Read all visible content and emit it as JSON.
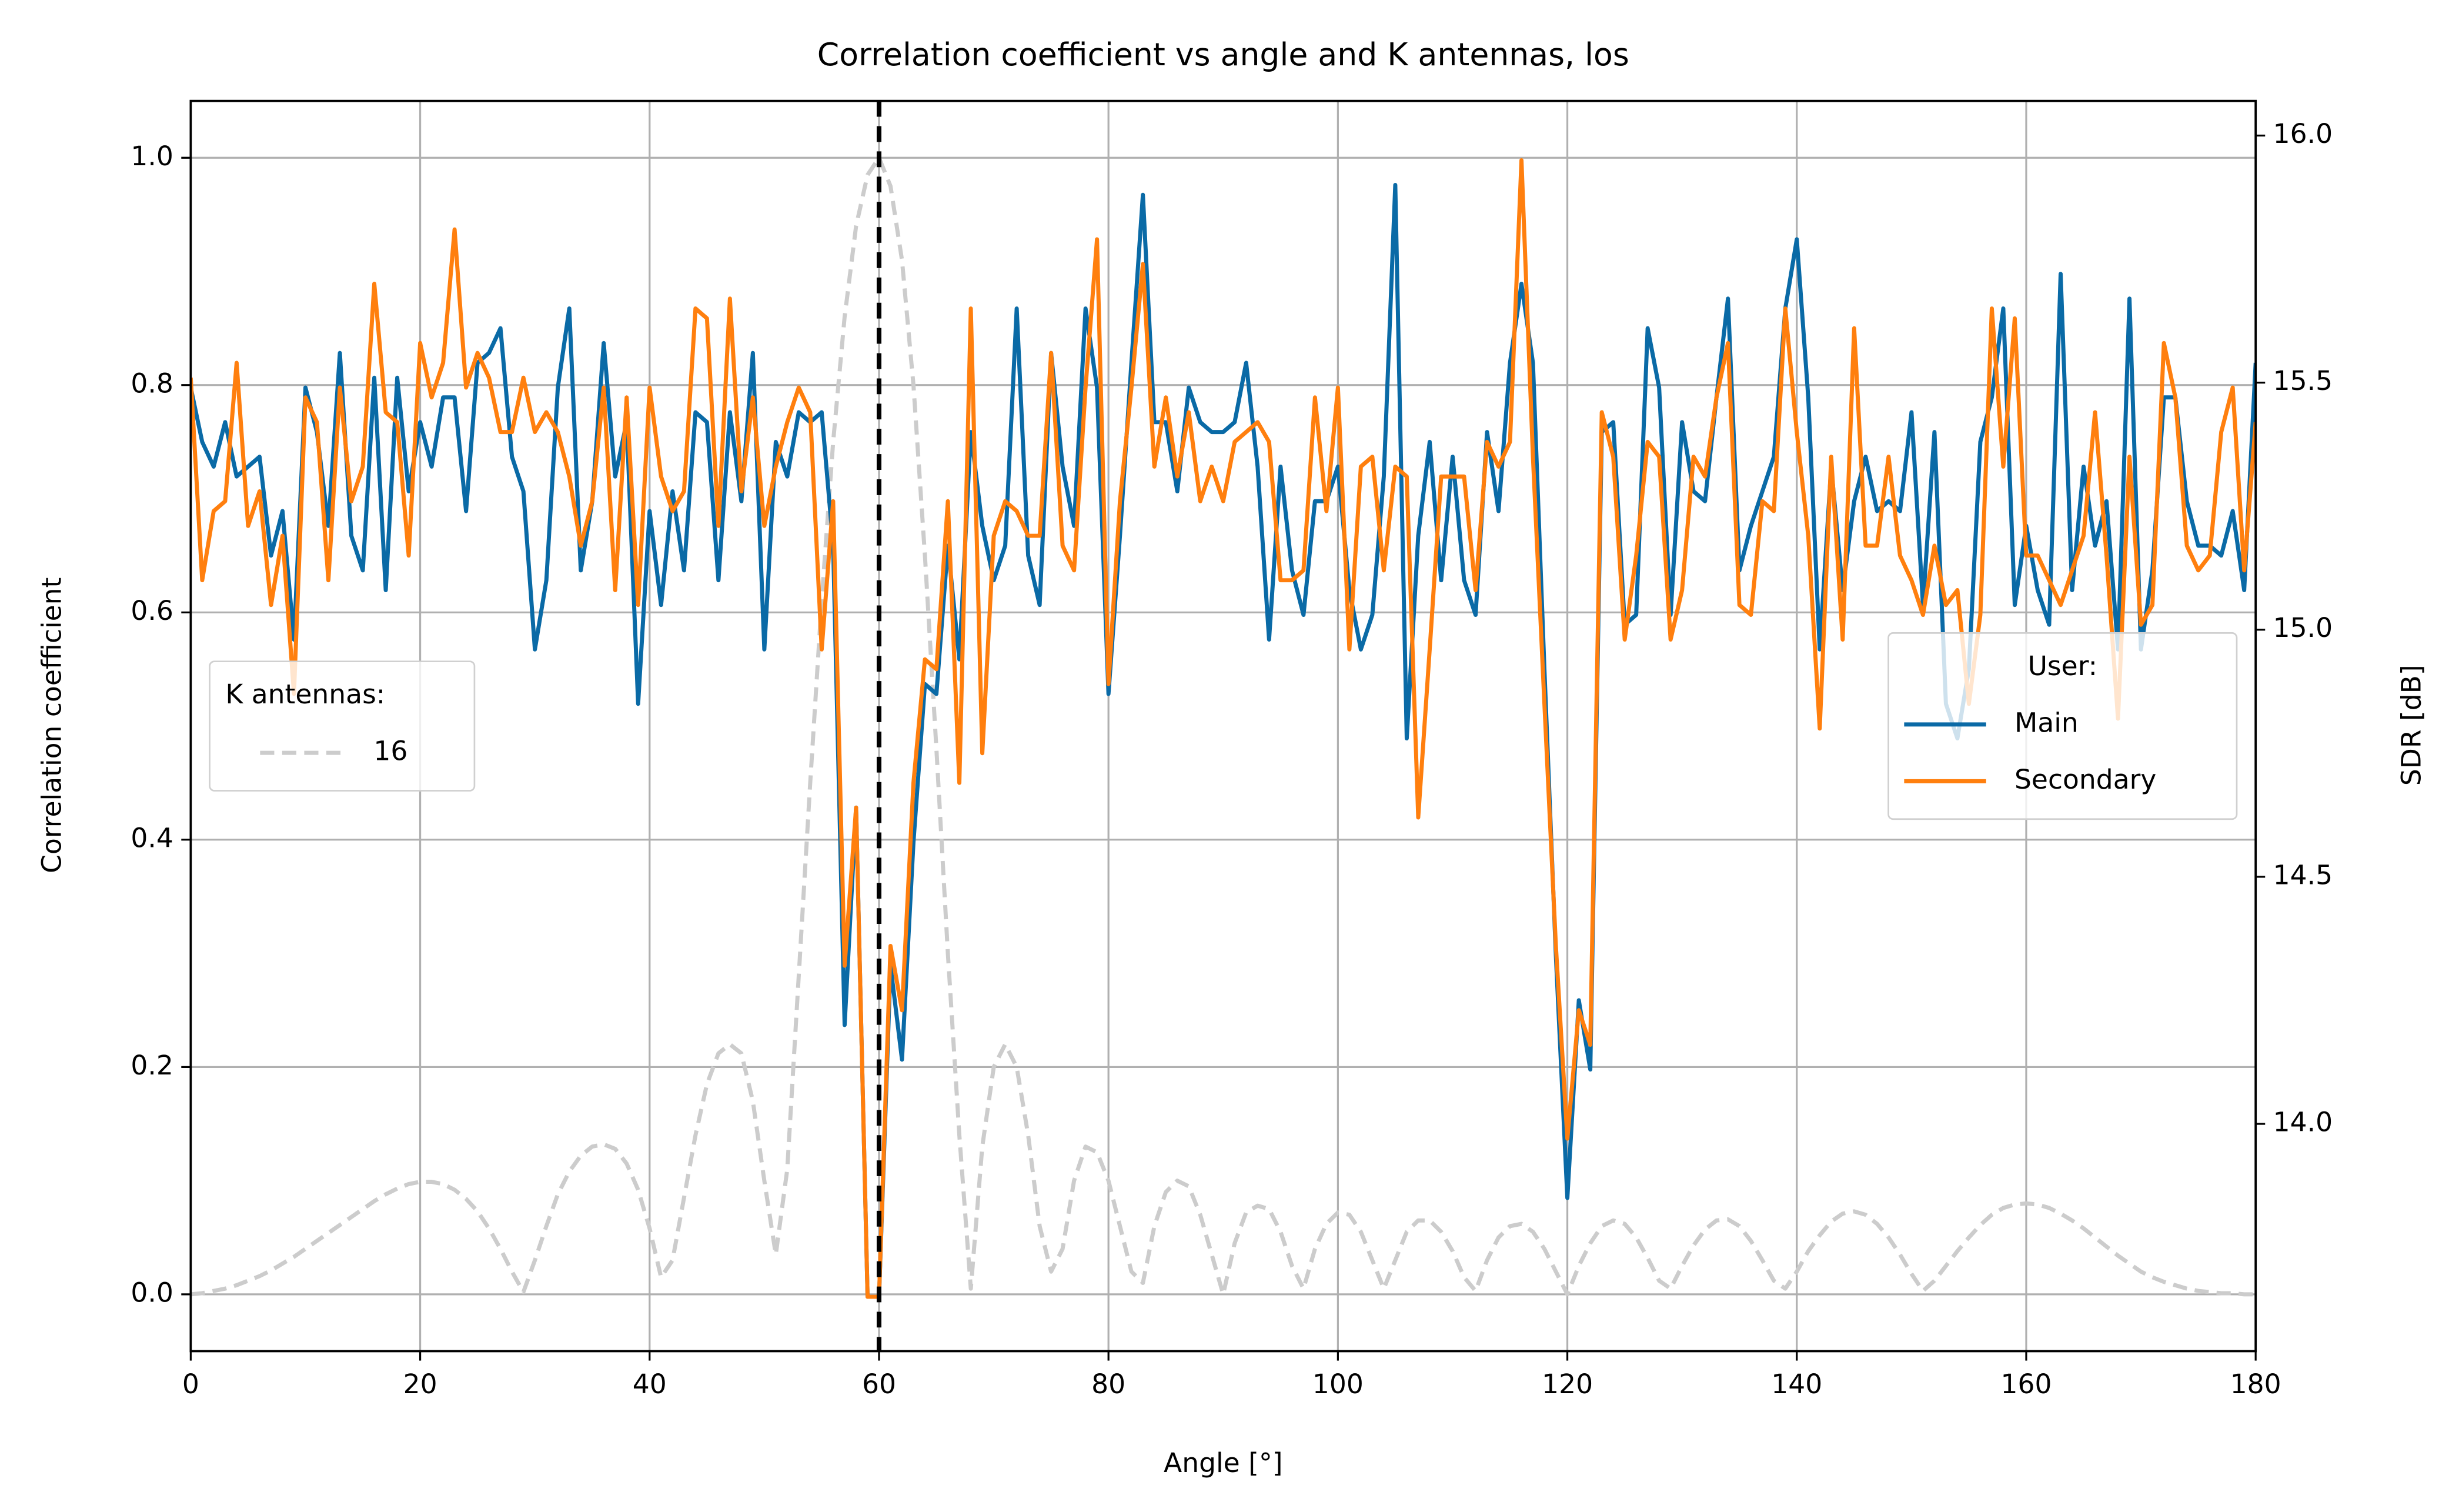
{
  "chart_data": {
    "type": "line",
    "title": "Correlation coefficient vs angle and K antennas, los",
    "x_label": "Angle [°]",
    "y_label": "Correlation coefficient",
    "y2_label": "SDR [dB]",
    "xlim": [
      0,
      180
    ],
    "xticks": [
      0,
      20,
      40,
      60,
      80,
      100,
      120,
      140,
      160,
      180
    ],
    "ylim": [
      -0.05,
      1.05
    ],
    "yticks": [
      {
        "value": 0,
        "label": "0.0"
      },
      0.2,
      0.4,
      0.6,
      0.8,
      {
        "value": 1,
        "label": "1.0"
      }
    ],
    "y2lim": [
      13.54,
      16.07
    ],
    "y2ticks": [
      {
        "value": 14,
        "label": "14.0"
      },
      14.5,
      {
        "value": 15,
        "label": "15.0"
      },
      15.5,
      {
        "value": 16,
        "label": "16.0"
      }
    ],
    "grid": true,
    "vline": 60,
    "vline_color": "#000000",
    "y_legend_title": "K antennas:",
    "y_legend_loc": "center left",
    "y2_legend_title": "User:",
    "y2_legend_loc": "center right",
    "x": [
      0,
      1,
      2,
      3,
      4,
      5,
      6,
      7,
      8,
      9,
      10,
      11,
      12,
      13,
      14,
      15,
      16,
      17,
      18,
      19,
      20,
      21,
      22,
      23,
      24,
      25,
      26,
      27,
      28,
      29,
      30,
      31,
      32,
      33,
      34,
      35,
      36,
      37,
      38,
      39,
      40,
      41,
      42,
      43,
      44,
      45,
      46,
      47,
      48,
      49,
      50,
      51,
      52,
      53,
      54,
      55,
      56,
      57,
      58,
      59,
      60,
      61,
      62,
      63,
      64,
      65,
      66,
      67,
      68,
      69,
      70,
      71,
      72,
      73,
      74,
      75,
      76,
      77,
      78,
      79,
      80,
      81,
      82,
      83,
      84,
      85,
      86,
      87,
      88,
      89,
      90,
      91,
      92,
      93,
      94,
      95,
      96,
      97,
      98,
      99,
      100,
      101,
      102,
      103,
      104,
      105,
      106,
      107,
      108,
      109,
      110,
      111,
      112,
      113,
      114,
      115,
      116,
      117,
      118,
      119,
      120,
      121,
      122,
      123,
      124,
      125,
      126,
      127,
      128,
      129,
      130,
      131,
      132,
      133,
      134,
      135,
      136,
      137,
      138,
      139,
      140,
      141,
      142,
      143,
      144,
      145,
      146,
      147,
      148,
      149,
      150,
      151,
      152,
      153,
      154,
      155,
      156,
      157,
      158,
      159,
      160,
      161,
      162,
      163,
      164,
      165,
      166,
      167,
      168,
      169,
      170,
      171,
      172,
      173,
      174,
      175,
      176,
      177,
      178,
      179,
      180
    ],
    "series": [
      {
        "name": "16",
        "color": "#cccccc",
        "linestyle": "dashed",
        "axis": "y",
        "values": [
          0,
          0.001,
          0.003,
          0.005,
          0.008,
          0.012,
          0.016,
          0.021,
          0.027,
          0.033,
          0.04,
          0.047,
          0.054,
          0.061,
          0.068,
          0.075,
          0.082,
          0.088,
          0.093,
          0.097,
          0.099,
          0.099,
          0.097,
          0.092,
          0.084,
          0.073,
          0.058,
          0.04,
          0.02,
          0.002,
          0.03,
          0.06,
          0.088,
          0.108,
          0.122,
          0.13,
          0.132,
          0.128,
          0.115,
          0.092,
          0.058,
          0.015,
          0.03,
          0.085,
          0.14,
          0.185,
          0.212,
          0.22,
          0.212,
          0.17,
          0.1,
          0.035,
          0.11,
          0.28,
          0.45,
          0.61,
          0.75,
          0.86,
          0.94,
          0.985,
          1.0,
          0.975,
          0.91,
          0.8,
          0.65,
          0.48,
          0.3,
          0.14,
          0.005,
          0.13,
          0.2,
          0.22,
          0.2,
          0.14,
          0.06,
          0.02,
          0.04,
          0.1,
          0.13,
          0.125,
          0.1,
          0.06,
          0.02,
          0.01,
          0.06,
          0.09,
          0.1,
          0.095,
          0.07,
          0.035,
          0,
          0.045,
          0.072,
          0.078,
          0.075,
          0.055,
          0.025,
          0.005,
          0.04,
          0.062,
          0.072,
          0.07,
          0.055,
          0.03,
          0.005,
          0.03,
          0.055,
          0.065,
          0.065,
          0.055,
          0.038,
          0.015,
          0.003,
          0.03,
          0.05,
          0.06,
          0.062,
          0.055,
          0.04,
          0.02,
          0,
          0.025,
          0.045,
          0.06,
          0.065,
          0.062,
          0.05,
          0.032,
          0.012,
          0.005,
          0.025,
          0.043,
          0.057,
          0.065,
          0.066,
          0.06,
          0.047,
          0.03,
          0.012,
          0.005,
          0.02,
          0.038,
          0.052,
          0.064,
          0.071,
          0.073,
          0.07,
          0.062,
          0.05,
          0.035,
          0.018,
          0.003,
          0.012,
          0.025,
          0.038,
          0.05,
          0.061,
          0.07,
          0.076,
          0.079,
          0.08,
          0.079,
          0.076,
          0.071,
          0.065,
          0.058,
          0.05,
          0.042,
          0.034,
          0.027,
          0.02,
          0.015,
          0.011,
          0.008,
          0.005,
          0.003,
          0.002,
          0.001,
          0.001,
          0,
          0
        ]
      },
      {
        "name": "Main",
        "color": "#0a6aa6",
        "linestyle": "solid",
        "axis": "y2",
        "values": [
          15.49,
          15.38,
          15.33,
          15.42,
          15.31,
          15.33,
          15.35,
          15.15,
          15.24,
          14.98,
          15.49,
          15.4,
          15.21,
          15.56,
          15.19,
          15.12,
          15.51,
          15.08,
          15.51,
          15.28,
          15.42,
          15.33,
          15.47,
          15.47,
          15.24,
          15.54,
          15.56,
          15.61,
          15.35,
          15.28,
          14.96,
          15.1,
          15.49,
          15.65,
          15.12,
          15.26,
          15.58,
          15.31,
          15.42,
          14.85,
          15.24,
          15.05,
          15.28,
          15.12,
          15.44,
          15.42,
          15.1,
          15.44,
          15.26,
          15.56,
          14.96,
          15.38,
          15.31,
          15.44,
          15.42,
          15.44,
          15.17,
          14.2,
          14.64,
          13.65,
          13.65,
          14.32,
          14.13,
          14.57,
          14.89,
          14.87,
          15.17,
          14.94,
          15.4,
          15.21,
          15.1,
          15.17,
          15.65,
          15.15,
          15.05,
          15.56,
          15.33,
          15.21,
          15.65,
          15.49,
          14.87,
          15.19,
          15.54,
          15.88,
          15.42,
          15.42,
          15.28,
          15.49,
          15.42,
          15.4,
          15.4,
          15.42,
          15.54,
          15.33,
          14.98,
          15.33,
          15.12,
          15.03,
          15.26,
          15.26,
          15.33,
          15.08,
          14.96,
          15.03,
          15.31,
          15.9,
          14.78,
          15.19,
          15.38,
          15.1,
          15.35,
          15.1,
          15.03,
          15.4,
          15.24,
          15.54,
          15.7,
          15.54,
          14.92,
          14.34,
          13.85,
          14.25,
          14.11,
          15.4,
          15.42,
          15.01,
          15.03,
          15.61,
          15.49,
          15.03,
          15.42,
          15.28,
          15.26,
          15.47,
          15.67,
          15.12,
          15.21,
          15.28,
          15.35,
          15.65,
          15.79,
          15.47,
          14.96,
          15.33,
          15.08,
          15.26,
          15.35,
          15.24,
          15.26,
          15.24,
          15.44,
          15.05,
          15.4,
          14.85,
          14.78,
          14.92,
          15.38,
          15.47,
          15.65,
          15.05,
          15.21,
          15.08,
          15.01,
          15.72,
          15.08,
          15.33,
          15.17,
          15.26,
          14.96,
          15.67,
          14.96,
          15.12,
          15.47,
          15.47,
          15.26,
          15.17,
          15.17,
          15.15,
          15.24,
          15.08,
          15.54
        ]
      },
      {
        "name": "Secondary",
        "color": "#ff7f0e",
        "linestyle": "solid",
        "axis": "y2",
        "values": [
          15.51,
          15.1,
          15.24,
          15.26,
          15.54,
          15.21,
          15.28,
          15.05,
          15.19,
          14.87,
          15.47,
          15.42,
          15.1,
          15.49,
          15.26,
          15.33,
          15.7,
          15.44,
          15.42,
          15.15,
          15.58,
          15.47,
          15.54,
          15.81,
          15.49,
          15.56,
          15.51,
          15.4,
          15.4,
          15.51,
          15.4,
          15.44,
          15.4,
          15.31,
          15.17,
          15.26,
          15.49,
          15.08,
          15.47,
          15.05,
          15.49,
          15.31,
          15.24,
          15.28,
          15.65,
          15.63,
          15.21,
          15.67,
          15.28,
          15.47,
          15.21,
          15.33,
          15.42,
          15.49,
          15.44,
          14.96,
          15.26,
          14.32,
          14.64,
          13.65,
          13.65,
          14.36,
          14.23,
          14.69,
          14.94,
          14.92,
          15.26,
          14.69,
          15.65,
          14.75,
          15.19,
          15.26,
          15.24,
          15.19,
          15.19,
          15.56,
          15.17,
          15.12,
          15.49,
          15.79,
          14.89,
          15.26,
          15.49,
          15.74,
          15.33,
          15.47,
          15.31,
          15.44,
          15.26,
          15.33,
          15.26,
          15.38,
          15.4,
          15.42,
          15.38,
          15.1,
          15.1,
          15.12,
          15.47,
          15.24,
          15.49,
          14.96,
          15.33,
          15.35,
          15.12,
          15.33,
          15.31,
          14.62,
          14.96,
          15.31,
          15.31,
          15.31,
          15.08,
          15.38,
          15.33,
          15.38,
          15.95,
          15.35,
          14.85,
          14.36,
          13.97,
          14.23,
          14.16,
          15.44,
          15.35,
          14.98,
          15.15,
          15.38,
          15.35,
          14.98,
          15.08,
          15.35,
          15.31,
          15.47,
          15.58,
          15.05,
          15.03,
          15.26,
          15.24,
          15.65,
          15.4,
          15.19,
          14.8,
          15.35,
          14.98,
          15.61,
          15.17,
          15.17,
          15.35,
          15.15,
          15.1,
          15.03,
          15.17,
          15.05,
          15.08,
          14.85,
          15.03,
          15.65,
          15.33,
          15.63,
          15.15,
          15.15,
          15.1,
          15.05,
          15.12,
          15.19,
          15.44,
          15.15,
          14.82,
          15.35,
          15.01,
          15.05,
          15.58,
          15.47,
          15.17,
          15.12,
          15.15,
          15.4,
          15.49,
          15.12,
          15.42
        ]
      }
    ]
  }
}
